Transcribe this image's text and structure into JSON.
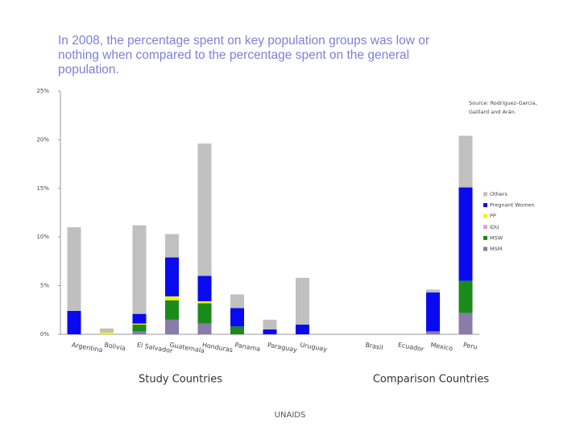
{
  "chart_data": {
    "type": "stacked_bar",
    "title": "In 2008, the percentage spent on key population groups was low or nothing when compared to the percentage spent on the general population.",
    "source": [
      "Source: Rodriguez-Garcia,",
      "Gaillard and Arán."
    ],
    "groups": [
      "Study Countries",
      "Comparison Countries"
    ],
    "footer": "UNAIDS",
    "categories": [
      "Argentina",
      "Bolivia",
      "El Salvador",
      "Guatemala",
      "Honduras",
      "Panama",
      "Paraguay",
      "Uruguay",
      "Brasil",
      "Ecuador",
      "Mexico",
      "Peru"
    ],
    "series": [
      {
        "name": "MSM",
        "color": "#8a7bab",
        "values": [
          0,
          0,
          0.3,
          1.5,
          1.1,
          0,
          0,
          0,
          0,
          0,
          0.3,
          2.2
        ]
      },
      {
        "name": "MSW",
        "color": "#1a8a1a",
        "values": [
          0,
          0,
          0.7,
          2.0,
          2.1,
          0.8,
          0,
          0,
          0,
          0,
          0,
          3.3
        ]
      },
      {
        "name": "IDU",
        "color": "#e3a0c8",
        "values": [
          0,
          0,
          0,
          0,
          0,
          0,
          0,
          0,
          0,
          0,
          0,
          0
        ]
      },
      {
        "name": "PP",
        "color": "#f2f200",
        "values": [
          0,
          0.2,
          0.1,
          0.4,
          0.2,
          0,
          0,
          0,
          0,
          0,
          0,
          0
        ]
      },
      {
        "name": "Pregnant Women",
        "color": "#0a0af0",
        "values": [
          2.4,
          0,
          1.0,
          4.0,
          2.6,
          1.9,
          0.5,
          1.0,
          0,
          0,
          4.0,
          9.6
        ]
      },
      {
        "name": "Others",
        "color": "#c0c0c0",
        "values": [
          8.6,
          0.4,
          9.1,
          2.4,
          13.6,
          1.4,
          1.0,
          4.8,
          0,
          0,
          0.3,
          5.3
        ]
      }
    ],
    "ylim": [
      0,
      25
    ],
    "yticks": [
      {
        "value": 0,
        "label": "0%"
      },
      {
        "value": 5,
        "label": "5%"
      },
      {
        "value": 10,
        "label": "10%"
      },
      {
        "value": 15,
        "label": "15%"
      },
      {
        "value": 20,
        "label": "20%"
      },
      {
        "value": 25,
        "label": "25%"
      }
    ],
    "grid": false
  }
}
